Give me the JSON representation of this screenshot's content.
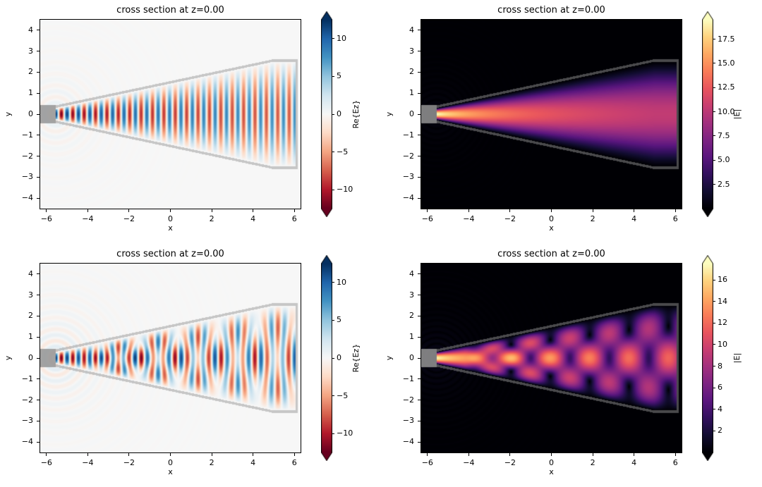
{
  "figure": {
    "background": "#ffffff",
    "description": "2x2 grid of FDTD simulation cross sections of a tapered horn waveguide"
  },
  "structure": {
    "wg_halfwidth": 0.3,
    "taper_start": -5.55,
    "taper_end": 5.0,
    "mouth_halfwidth": 2.5,
    "end_wall": 6.05,
    "wall_thickness": 0.12,
    "stub_right": -5.55,
    "stub_halfwidth": 0.42,
    "wall_gray": "#949494"
  },
  "chart_data": [
    {
      "id": "top-left",
      "type": "heatmap",
      "title": "cross section at z=0.00",
      "xlabel": "x",
      "ylabel": "y",
      "xlim": [
        -6.3,
        6.3
      ],
      "ylim": [
        -4.5,
        4.5
      ],
      "xtick_values": [
        -6,
        -4,
        -2,
        0,
        2,
        4,
        6
      ],
      "xtick_labels": [
        "−6",
        "−4",
        "−2",
        "0",
        "2",
        "4",
        "6"
      ],
      "ytick_values": [
        4,
        3,
        2,
        1,
        0,
        -1,
        -2,
        -3,
        -4
      ],
      "ytick_labels": [
        "4",
        "3",
        "2",
        "1",
        "0",
        "−1",
        "−2",
        "−3",
        "−4"
      ],
      "colorbar": {
        "label": "Re{Ez}",
        "cmap": "RdBu",
        "vmin": -12.5,
        "vmax": 12.5,
        "extend": "both",
        "tick_values": [
          10,
          5,
          0,
          -5,
          -10
        ],
        "tick_labels": [
          "10",
          "5",
          "0",
          "−5",
          "−10"
        ]
      },
      "field": {
        "kind": "re_ez",
        "multimode": false,
        "k": 11.4,
        "k2": 8.1,
        "mix": 0.0,
        "amp": 12.5,
        "decay": 0.22,
        "ripple_amp": 0.9,
        "source_x": -5.55,
        "profile_power": 0.85
      }
    },
    {
      "id": "top-right",
      "type": "heatmap",
      "title": "cross section at z=0.00",
      "xlabel": "x",
      "ylabel": "y",
      "xlim": [
        -6.3,
        6.3
      ],
      "ylim": [
        -4.5,
        4.5
      ],
      "xtick_values": [
        -6,
        -4,
        -2,
        0,
        2,
        4,
        6
      ],
      "xtick_labels": [
        "−6",
        "−4",
        "−2",
        "0",
        "2",
        "4",
        "6"
      ],
      "ytick_values": [
        4,
        3,
        2,
        1,
        0,
        -1,
        -2,
        -3,
        -4
      ],
      "ytick_labels": [
        "4",
        "3",
        "2",
        "1",
        "0",
        "−1",
        "−2",
        "−3",
        "−4"
      ],
      "colorbar": {
        "label": "|E|",
        "cmap": "magma",
        "vmin": 0,
        "vmax": 19.5,
        "extend": "both",
        "tick_values": [
          17.5,
          15.0,
          12.5,
          10.0,
          7.5,
          5.0,
          2.5
        ],
        "tick_labels": [
          "17.5",
          "15.0",
          "12.5",
          "10.0",
          "7.5",
          "5.0",
          "2.5"
        ]
      },
      "field": {
        "kind": "abs_e",
        "multimode": false,
        "k": 11.4,
        "k2": 8.1,
        "mix": 0.0,
        "amp": 19.5,
        "decay": 0.3,
        "ripple_amp": 0.7,
        "source_x": -5.55,
        "profile_power": 1.25
      }
    },
    {
      "id": "bottom-left",
      "type": "heatmap",
      "title": "cross section at z=0.00",
      "xlabel": "x",
      "ylabel": "y",
      "xlim": [
        -6.3,
        6.3
      ],
      "ylim": [
        -4.5,
        4.5
      ],
      "xtick_values": [
        -6,
        -4,
        -2,
        0,
        2,
        4,
        6
      ],
      "xtick_labels": [
        "−6",
        "−4",
        "−2",
        "0",
        "2",
        "4",
        "6"
      ],
      "ytick_values": [
        4,
        3,
        2,
        1,
        0,
        -1,
        -2,
        -3,
        -4
      ],
      "ytick_labels": [
        "4",
        "3",
        "2",
        "1",
        "0",
        "−1",
        "−2",
        "−3",
        "−4"
      ],
      "colorbar": {
        "label": "Re{Ez}",
        "cmap": "RdBu",
        "vmin": -12.5,
        "vmax": 12.5,
        "extend": "both",
        "tick_values": [
          10,
          5,
          0,
          -5,
          -10
        ],
        "tick_labels": [
          "10",
          "5",
          "0",
          "−5",
          "−10"
        ]
      },
      "field": {
        "kind": "re_ez",
        "multimode": true,
        "k": 11.4,
        "k2": 8.1,
        "mix": 0.6,
        "amp": 12.5,
        "decay": 0.22,
        "ripple_amp": 1.6,
        "source_x": -5.55,
        "profile_power": 0.85
      }
    },
    {
      "id": "bottom-right",
      "type": "heatmap",
      "title": "cross section at z=0.00",
      "xlabel": "x",
      "ylabel": "y",
      "xlim": [
        -6.3,
        6.3
      ],
      "ylim": [
        -4.5,
        4.5
      ],
      "xtick_values": [
        -6,
        -4,
        -2,
        0,
        2,
        4,
        6
      ],
      "xtick_labels": [
        "−6",
        "−4",
        "−2",
        "0",
        "2",
        "4",
        "6"
      ],
      "ytick_values": [
        4,
        3,
        2,
        1,
        0,
        -1,
        -2,
        -3,
        -4
      ],
      "ytick_labels": [
        "4",
        "3",
        "2",
        "1",
        "0",
        "−1",
        "−2",
        "−3",
        "−4"
      ],
      "colorbar": {
        "label": "|E|",
        "cmap": "magma",
        "vmin": 0,
        "vmax": 17.5,
        "extend": "both",
        "tick_values": [
          16,
          14,
          12,
          10,
          8,
          6,
          4,
          2
        ],
        "tick_labels": [
          "16",
          "14",
          "12",
          "10",
          "8",
          "6",
          "4",
          "2"
        ]
      },
      "field": {
        "kind": "abs_e",
        "multimode": true,
        "k": 11.4,
        "k2": 8.1,
        "mix": 0.6,
        "amp": 17.2,
        "decay": 0.3,
        "ripple_amp": 1.2,
        "source_x": -5.55,
        "profile_power": 1.25
      }
    }
  ]
}
